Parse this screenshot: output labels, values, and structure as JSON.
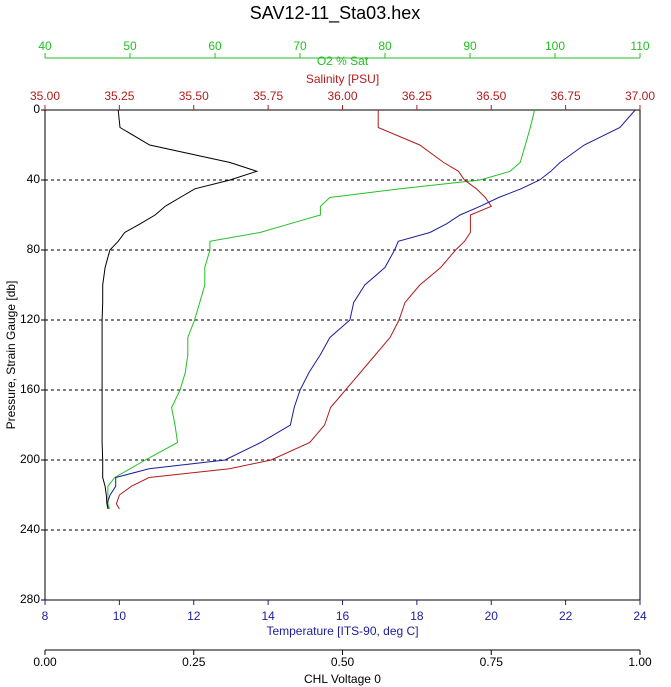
{
  "chart_data": {
    "type": "line",
    "title": "SAV12-11_Sta03.hex",
    "ylabel": "Pressure, Strain Gauge [db]",
    "ylim": [
      280,
      0
    ],
    "yticks": [
      0,
      40,
      80,
      120,
      160,
      200,
      240,
      280
    ],
    "grid": true,
    "pressure": [
      0,
      10,
      20,
      30,
      35,
      40,
      45,
      50,
      55,
      60,
      65,
      70,
      75,
      80,
      90,
      100,
      110,
      120,
      130,
      140,
      150,
      160,
      170,
      180,
      190,
      200,
      205,
      210,
      215,
      220,
      225,
      228
    ],
    "x_axes": [
      {
        "label": "O2 % Sat",
        "color": "#22c022",
        "xlim": [
          40,
          110
        ],
        "xticks": [
          40,
          50,
          60,
          70,
          80,
          90,
          100,
          110
        ]
      },
      {
        "label": "Salinity [PSU]",
        "color": "#b01c1c",
        "xlim": [
          35,
          37
        ],
        "xticks": [
          {
            "value": 35,
            "label": "35.00"
          },
          35.25,
          {
            "value": 35.5,
            "label": "35.50"
          },
          35.75,
          {
            "value": 36,
            "label": "36.00"
          },
          36.25,
          {
            "value": 36.5,
            "label": "36.50"
          },
          36.75,
          {
            "value": 37,
            "label": "37.00"
          }
        ]
      },
      {
        "label": "Temperature [ITS-90, deg C]",
        "color": "#1c1c9c",
        "xlim": [
          8,
          24
        ],
        "xticks": [
          8,
          10,
          12,
          14,
          16,
          18,
          20,
          22,
          24
        ]
      },
      {
        "label": "CHL Voltage 0",
        "color": "#000000",
        "xlim": [
          0,
          1
        ],
        "xticks": [
          {
            "value": 0,
            "label": "0.00"
          },
          0.25,
          {
            "value": 0.5,
            "label": "0.50"
          },
          0.75,
          {
            "value": 1,
            "label": "1.00"
          }
        ]
      }
    ],
    "series": [
      {
        "x_axis": 0,
        "color": "#22c022",
        "values": [
          97.6,
          97.1,
          96.5,
          95.9,
          94.7,
          91.2,
          81.8,
          73.5,
          72.4,
          72.4,
          68.8,
          65.3,
          59.4,
          59.4,
          58.8,
          58.8,
          58.2,
          57.6,
          56.8,
          56.8,
          56.5,
          55.9,
          54.9,
          55.3,
          55.6,
          51.8,
          50,
          48.2,
          47.4,
          47.4,
          47.4,
          47.6
        ]
      },
      {
        "x_axis": 1,
        "color": "#b01c1c",
        "values": [
          36.12,
          36.12,
          36.26,
          36.34,
          36.39,
          36.41,
          36.45,
          36.48,
          36.5,
          36.43,
          36.43,
          36.43,
          36.41,
          36.38,
          36.33,
          36.26,
          36.21,
          36.19,
          36.16,
          36.11,
          36.06,
          36.01,
          35.96,
          35.94,
          35.89,
          35.76,
          35.62,
          35.35,
          35.29,
          35.25,
          35.24,
          35.25
        ]
      },
      {
        "x_axis": 2,
        "color": "#1c1c9c",
        "values": [
          23.87,
          23.46,
          22.5,
          21.85,
          21.6,
          21.3,
          20.8,
          20.2,
          19.7,
          19.16,
          18.8,
          18.35,
          17.5,
          17.4,
          17.14,
          16.6,
          16.3,
          16.2,
          15.66,
          15.4,
          15.1,
          14.86,
          14.7,
          14.6,
          13.8,
          12.84,
          10.8,
          9.9,
          9.9,
          9.75,
          9.67,
          9.7
        ]
      },
      {
        "x_axis": 3,
        "color": "#000000",
        "values": [
          0.123,
          0.126,
          0.176,
          0.311,
          0.356,
          0.311,
          0.252,
          0.227,
          0.202,
          0.185,
          0.16,
          0.134,
          0.123,
          0.109,
          0.101,
          0.097,
          0.097,
          0.096,
          0.096,
          0.096,
          0.096,
          0.096,
          0.096,
          0.096,
          0.096,
          0.097,
          0.097,
          0.097,
          0.101,
          0.103,
          0.104,
          0.106
        ]
      }
    ]
  }
}
